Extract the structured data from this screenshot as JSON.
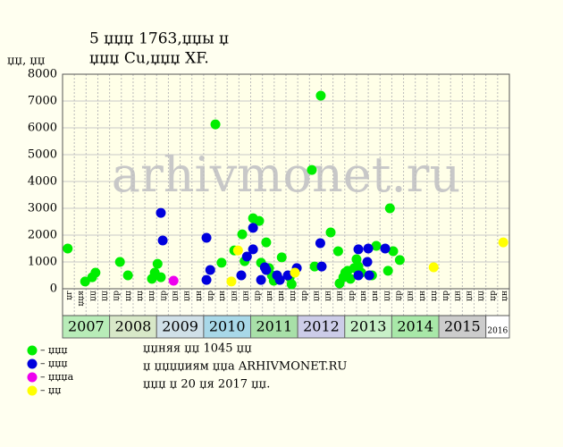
{
  "chart_data": {
    "type": "scatter",
    "title": [
      "5 џџџ 1763,џџы џ",
      "џџџ Cu,џџџ XF."
    ],
    "y_label": "џџ, џџ",
    "watermark": "arhivmonet.ru",
    "xlim": [
      2007,
      2016.5
    ],
    "ylim": [
      0,
      8000
    ],
    "yticks": [
      0,
      1000,
      2000,
      3000,
      4000,
      5000,
      6000,
      7000,
      8000
    ],
    "grid": true,
    "years": [
      "2007",
      "2008",
      "2009",
      "2010",
      "2011",
      "2012",
      "2013",
      "2014",
      "2015",
      "2016"
    ],
    "year_colors": [
      "#b8ecb8",
      "#d8e8c8",
      "#d0e0e8",
      "#a8d8e8",
      "#a8e0a8",
      "#cccce8",
      "#c8f0c8",
      "#a8e8a8",
      "#cccccc",
      "#ffffff"
    ],
    "period_labels": [
      "џг",
      "џџя",
      "џџ",
      "џџ",
      "џр",
      "џџ",
      "џџ",
      "џџ",
      "џр",
      "џн",
      "џн",
      "џн",
      "џр",
      "џн",
      "џн",
      "џн",
      "џр",
      "џн",
      "џн",
      "џџ",
      "џр",
      "џн",
      "џн",
      "џн",
      "џр",
      "џн",
      "џн",
      "џџ",
      "џр",
      "џн",
      "џн",
      "џџ",
      "џр",
      "џн",
      "џн",
      "џџ",
      "џр",
      "џн"
    ],
    "series": [
      {
        "name": "– џџџ",
        "color": "#00ee00",
        "x": [
          2007.11,
          2007.48,
          2007.63,
          2007.7,
          2008.22,
          2008.39,
          2008.9,
          2008.96,
          2009.02,
          2009.09,
          2010.25,
          2010.38,
          2010.65,
          2010.82,
          2010.87,
          2011.05,
          2011.18,
          2011.22,
          2011.33,
          2011.39,
          2011.45,
          2011.49,
          2011.66,
          2011.83,
          2011.87,
          2012.3,
          2012.36,
          2012.49,
          2012.7,
          2012.86,
          2012.89,
          2012.97,
          2013.01,
          2013.06,
          2013.12,
          2013.2,
          2013.25,
          2013.29,
          2013.35,
          2013.58,
          2013.67,
          2013.92,
          2013.96,
          2014.03,
          2014.17
        ],
        "y": [
          1500,
          270,
          430,
          600,
          1000,
          500,
          370,
          600,
          930,
          430,
          6130,
          970,
          1430,
          2030,
          1030,
          2630,
          2530,
          970,
          1730,
          770,
          500,
          300,
          1170,
          430,
          170,
          4430,
          830,
          7200,
          2100,
          1400,
          200,
          430,
          600,
          670,
          370,
          770,
          1100,
          830,
          600,
          500,
          1600,
          670,
          3000,
          1400,
          1070
        ]
      },
      {
        "name": "– џџџ",
        "color": "#0000dd",
        "x": [
          2009.09,
          2009.13,
          2010.06,
          2010.06,
          2010.14,
          2010.8,
          2010.92,
          2011.05,
          2011.05,
          2011.22,
          2011.3,
          2011.33,
          2011.56,
          2011.62,
          2011.79,
          2011.98,
          2012.48,
          2012.51,
          2013.29,
          2013.29,
          2013.5,
          2013.48,
          2013.52,
          2013.86
        ],
        "y": [
          2830,
          1800,
          1900,
          330,
          700,
          500,
          1200,
          1470,
          2270,
          330,
          800,
          700,
          500,
          330,
          500,
          770,
          1700,
          830,
          1470,
          500,
          1500,
          1000,
          500,
          1500
        ]
      },
      {
        "name": "– џџџа",
        "color": "#ee00ee",
        "x": [
          2009.36
        ],
        "y": [
          300
        ]
      },
      {
        "name": "– џџ",
        "color": "#ffff00",
        "x": [
          2010.59,
          2010.73,
          2011.94,
          2014.89,
          2016.37
        ],
        "y": [
          270,
          1430,
          600,
          800,
          1730
        ]
      }
    ],
    "info": [
      "џџняя џџ 1045 џџ",
      "џ џџџџиям џџа ARHIVMONET.RU",
      "џџџ џ 20 џя 2017 џџ."
    ]
  }
}
